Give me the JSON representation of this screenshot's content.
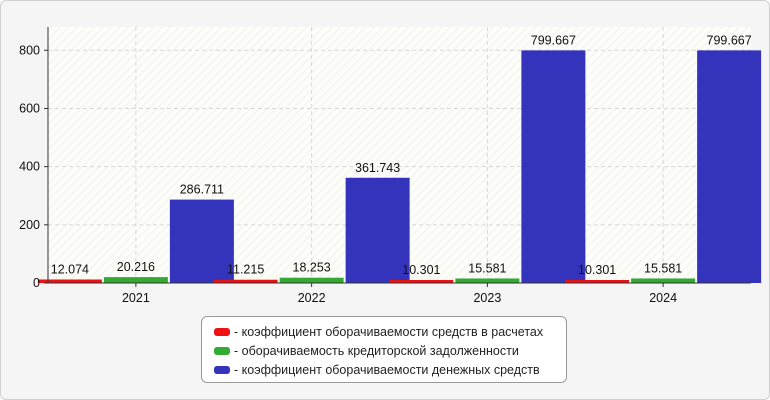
{
  "chart_data": {
    "type": "bar",
    "categories": [
      "2021",
      "2022",
      "2023",
      "2024"
    ],
    "series": [
      {
        "name": "- коэффициент оборачиваемости средств в расчетах",
        "color": "#ee1111",
        "values": [
          12.074,
          11.215,
          10.301,
          10.301
        ],
        "labels": [
          "12.074",
          "11.215",
          "10.301",
          "10.301"
        ]
      },
      {
        "name": "- оборачиваемость кредиторской задолженности",
        "color": "#33aa33",
        "values": [
          20.216,
          18.253,
          15.581,
          15.581
        ],
        "labels": [
          "20.216",
          "18.253",
          "15.581",
          "15.581"
        ]
      },
      {
        "name": "- коэффициент оборачиваемости денежных средств",
        "color": "#3333bb",
        "values": [
          286.711,
          361.743,
          799.667,
          799.667
        ],
        "labels": [
          "286.711",
          "361.743",
          "799.667",
          "799.667"
        ]
      }
    ],
    "ylim": [
      0,
      880
    ],
    "yticks": [
      0,
      200,
      400,
      600,
      800
    ],
    "grid": true,
    "legend_position": "bottom"
  }
}
